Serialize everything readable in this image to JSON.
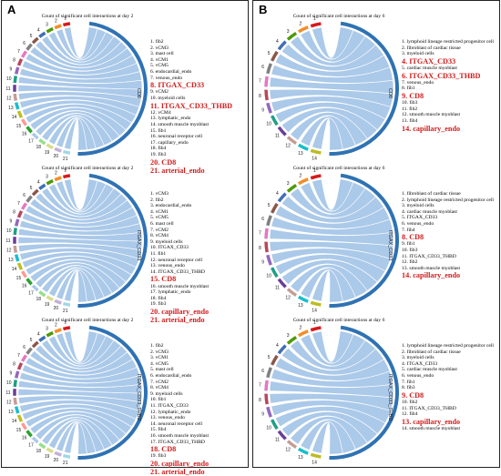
{
  "panels": [
    {
      "label": "A",
      "diagrams": [
        {
          "title": "Count of significant cell interactions at day 2",
          "source": "CD8",
          "n": 21,
          "items": [
            "fib2",
            "vCM3",
            "mast cell",
            "vCM1",
            "vCM5",
            "endocardial_endo",
            "venous_endo",
            "ITGAX_CD33",
            "vCM2",
            "myeloid cells",
            "ITGAX_CD33_THBD",
            "vCM4",
            "lymphatic_endo",
            "smooth muscle myoblast",
            "fib1",
            "neuronal receptor cell",
            "capillary_endo",
            "fib4",
            "fib3",
            "CD8",
            "arterial_endo"
          ],
          "highlight": [
            8,
            11,
            20,
            21
          ]
        },
        {
          "title": "Count of significant cell interactions at day 2",
          "source": "ITGAX_CD33",
          "n": 21,
          "items": [
            "vCM3",
            "fib2",
            "endocardial_endo",
            "vCM1",
            "vCM5",
            "mast cell",
            "vCM2",
            "vCM4",
            "myeloid cells",
            "ITGAX_CD33",
            "fib1",
            "neuronal receptor cell",
            "venous_endo",
            "ITGAX_CD33_THBD",
            "CD8",
            "smooth muscle myoblast",
            "lymphatic_endo",
            "fib4",
            "fib3",
            "capillary_endo",
            "arterial_endo"
          ],
          "highlight": [
            15,
            20,
            21
          ]
        },
        {
          "title": "Count of significant cell interactions at day 2",
          "source": "ITGAX_CD33_THBD",
          "n": 21,
          "items": [
            "fib2",
            "vCM3",
            "vCM1",
            "vCM5",
            "mast cell",
            "endocardial_endo",
            "vCM2",
            "vCM4",
            "myeloid cells",
            "fib1",
            "ITGAX_CD33",
            "lymphatic_endo",
            "venous_endo",
            "neuronal receptor cell",
            "fib4",
            "smooth muscle myoblast",
            "ITGAX_CD33_THBD",
            "CD8",
            "fib3",
            "capillary_endo",
            "arterial_endo"
          ],
          "highlight": [
            18,
            20,
            21
          ]
        }
      ]
    },
    {
      "label": "B",
      "diagrams": [
        {
          "title": "Count of significant cell interactions at day 6",
          "source": "CD8",
          "n": 14,
          "items": [
            "lymphoid lineage restricted progenitor cell",
            "fibroblast of cardiac tissue",
            "myeloid cells",
            "ITGAX_CD33",
            "cardiac muscle myoblast",
            "ITGAX_CD33_THBD",
            "venous_endo",
            "fib1",
            "CD8",
            "fib3",
            "fib2",
            "smooth muscle myoblast",
            "fib4",
            "capillary_endo"
          ],
          "highlight": [
            4,
            6,
            9,
            14
          ]
        },
        {
          "title": "Count of significant cell interactions at day 6",
          "source": "ITGAX_CD33",
          "n": 14,
          "items": [
            "fibroblast of cardiac tissue",
            "lymphoid lineage restricted progenitor cell",
            "myeloid cells",
            "cardiac muscle myoblast",
            "ITGAX_CD33",
            "venous_endo",
            "fib4",
            "CD8",
            "fib1",
            "fib3",
            "ITGAX_CD33_THBD",
            "fib2",
            "smooth muscle myoblast",
            "capillary_endo"
          ],
          "highlight": [
            8,
            14
          ]
        },
        {
          "title": "Count of significant cell interactions at day 6",
          "source": "ITGAX_CD33_THBD",
          "n": 14,
          "items": [
            "lymphoid lineage restricted progenitor cell",
            "fibroblast of cardiac tissue",
            "myeloid cells",
            "ITGAX_CD33",
            "cardiac muscle myoblast",
            "venous_endo",
            "fib1",
            "fib3",
            "CD8",
            "fib2",
            "ITGAX_CD33_THBD",
            "fib4",
            "capillary_endo",
            "smooth muscle myoblast"
          ],
          "highlight": [
            9,
            13
          ]
        }
      ]
    }
  ],
  "colors": {
    "source_arc": "#2f72b3",
    "chord_fill": "#a7c6e8",
    "chord_stroke": "#ffffff",
    "highlight_text": "#d01c1c",
    "segments": [
      "#d7191c",
      "#f28e2b",
      "#4e9a06",
      "#3f6fb5",
      "#8c564b",
      "#7f7f7f",
      "#e377c2",
      "#b5485c",
      "#9467bd",
      "#1f9e89",
      "#6a3d9a",
      "#c49c94",
      "#17becf",
      "#bcbd22",
      "#ff9896",
      "#2ca02c",
      "#aec7e8",
      "#98df8a",
      "#dbdb8d",
      "#c5b0d5",
      "#9edae5"
    ]
  }
}
